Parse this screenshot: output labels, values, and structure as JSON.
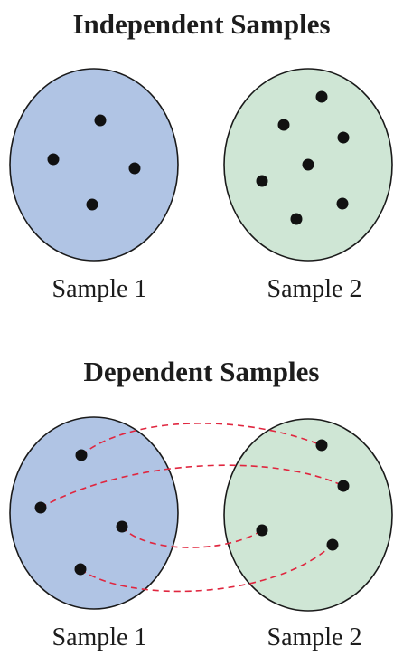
{
  "independent": {
    "title": "Independent Samples",
    "sample1_label": "Sample 1",
    "sample2_label": "Sample 2"
  },
  "dependent": {
    "title": "Dependent Samples",
    "sample1_label": "Sample 1",
    "sample2_label": "Sample 2"
  },
  "colors": {
    "sample1_fill": "#b0c4e4",
    "sample2_fill": "#cfe6d5",
    "outline": "#1a1a1a",
    "point": "#111111",
    "pair_line": "#e0263f"
  }
}
